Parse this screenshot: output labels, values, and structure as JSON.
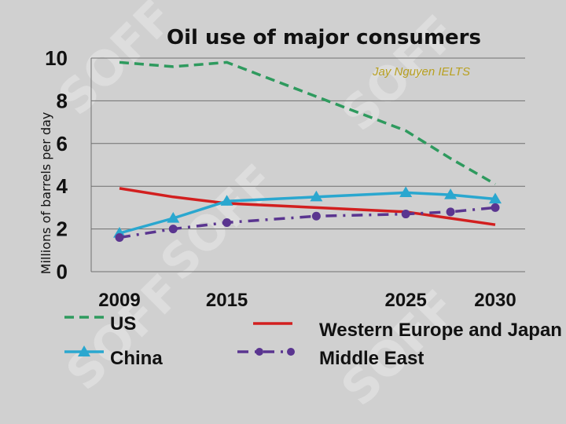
{
  "watermark_text": "SOFF",
  "chart_data": {
    "type": "line",
    "title": "Oil use of major consumers",
    "ylabel": "Millions of barrels per day",
    "xlabel": "",
    "credit": "Jay Nguyen IELTS",
    "ylim": [
      0,
      10
    ],
    "yticks": [
      "0",
      "2",
      "4",
      "6",
      "8",
      "10"
    ],
    "x_categories": [
      "2009",
      "2015",
      "2025",
      "2030"
    ],
    "grid": true,
    "legend_position": "bottom",
    "series": [
      {
        "name": "US",
        "color": "#2e9a5e",
        "style": "dashed",
        "points": [
          [
            2009,
            9.8
          ],
          [
            2012,
            9.6
          ],
          [
            2015,
            9.8
          ],
          [
            2020,
            8.2
          ],
          [
            2025,
            6.6
          ],
          [
            2027.5,
            5.3
          ],
          [
            2030,
            4.1
          ]
        ]
      },
      {
        "name": "Western Europe and Japan",
        "color": "#d21f1f",
        "style": "solid",
        "points": [
          [
            2009,
            3.9
          ],
          [
            2012,
            3.5
          ],
          [
            2015,
            3.2
          ],
          [
            2020,
            3.0
          ],
          [
            2025,
            2.8
          ],
          [
            2027.5,
            2.5
          ],
          [
            2030,
            2.2
          ]
        ]
      },
      {
        "name": "China",
        "color": "#2aa7cf",
        "style": "solid-triangle",
        "points": [
          [
            2009,
            1.8
          ],
          [
            2012,
            2.5
          ],
          [
            2015,
            3.3
          ],
          [
            2020,
            3.5
          ],
          [
            2025,
            3.7
          ],
          [
            2027.5,
            3.6
          ],
          [
            2030,
            3.4
          ]
        ]
      },
      {
        "name": "Middle East",
        "color": "#5a3590",
        "style": "dashdot-circle",
        "points": [
          [
            2009,
            1.6
          ],
          [
            2012,
            2.0
          ],
          [
            2015,
            2.3
          ],
          [
            2020,
            2.6
          ],
          [
            2025,
            2.7
          ],
          [
            2027.5,
            2.8
          ],
          [
            2030,
            3.0
          ]
        ]
      }
    ]
  }
}
